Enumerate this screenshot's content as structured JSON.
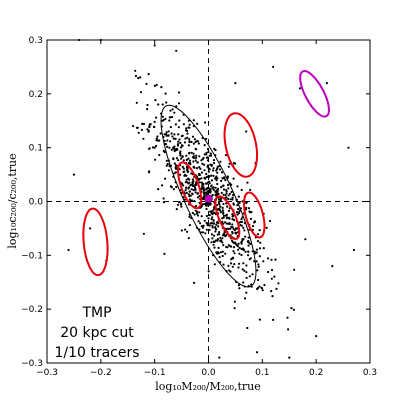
{
  "chart_data": {
    "type": "scatter",
    "xlabel": "log₁₀M₂₀₀/M₂₀₀,true",
    "ylabel": "log₁₀c₂₀₀/c₂₀₀,true",
    "xlim": [
      -0.3,
      0.3
    ],
    "ylim": [
      -0.3,
      0.3
    ],
    "xticks": [
      "−0.3",
      "−0.2",
      "−0.1",
      "0.0",
      "0.1",
      "0.2",
      "0.3"
    ],
    "yticks": [
      "−0.3",
      "−0.2",
      "−0.1",
      "0.0",
      "0.1",
      "0.2",
      "0.3"
    ],
    "reference_lines": {
      "x": 0.0,
      "y": 0.0,
      "style": "dashed"
    },
    "annotation": [
      "TMP",
      "20 kpc cut",
      "1/10 tracers"
    ],
    "points": {
      "color": "#000000",
      "center": [
        0.0,
        0.01
      ],
      "cov": [
        [
          0.0028,
          -0.0036
        ],
        [
          -0.0036,
          0.0072
        ]
      ],
      "count": 900,
      "outliers": [
        [
          -0.24,
          0.3
        ],
        [
          -0.2,
          0.3
        ],
        [
          -0.1,
          0.29
        ],
        [
          -0.06,
          0.28
        ],
        [
          0.17,
          0.21
        ],
        [
          0.22,
          0.22
        ],
        [
          0.26,
          0.1
        ],
        [
          0.27,
          -0.09
        ],
        [
          -0.26,
          -0.09
        ],
        [
          -0.22,
          -0.05
        ],
        [
          -0.19,
          -0.11
        ],
        [
          0.2,
          -0.25
        ],
        [
          0.23,
          -0.12
        ],
        [
          0.12,
          -0.22
        ],
        [
          -0.25,
          0.05
        ],
        [
          0.07,
          0.13
        ],
        [
          -0.14,
          0.14
        ],
        [
          0.18,
          -0.07
        ],
        [
          0.12,
          0.25
        ],
        [
          0.02,
          -0.29
        ],
        [
          0.09,
          -0.28
        ],
        [
          0.15,
          -0.29
        ],
        [
          -0.12,
          -0.06
        ],
        [
          0.05,
          0.22
        ]
      ]
    },
    "ellipses": [
      {
        "name": "black-ellipse",
        "color": "#000000",
        "cx": 0.0,
        "cy": 0.01,
        "rx": 0.045,
        "ry": 0.185,
        "tilt_deg": 25
      },
      {
        "name": "red-upper-right",
        "color": "#e8000b",
        "cx": 0.06,
        "cy": 0.105,
        "rx": 0.028,
        "ry": 0.06,
        "tilt_deg": 12
      },
      {
        "name": "red-center-left",
        "color": "#e8000b",
        "cx": -0.035,
        "cy": 0.03,
        "rx": 0.016,
        "ry": 0.045,
        "tilt_deg": 20
      },
      {
        "name": "red-center-right",
        "color": "#e8000b",
        "cx": 0.035,
        "cy": -0.03,
        "rx": 0.015,
        "ry": 0.043,
        "tilt_deg": 24
      },
      {
        "name": "red-right",
        "color": "#e8000b",
        "cx": 0.085,
        "cy": -0.025,
        "rx": 0.016,
        "ry": 0.043,
        "tilt_deg": 15
      },
      {
        "name": "red-left",
        "color": "#e8000b",
        "cx": -0.21,
        "cy": -0.075,
        "rx": 0.022,
        "ry": 0.062,
        "tilt_deg": 5
      },
      {
        "name": "magenta-upper-right",
        "color": "#bf00bf",
        "cx": 0.197,
        "cy": 0.2,
        "rx": 0.017,
        "ry": 0.047,
        "tilt_deg": 28
      }
    ],
    "markers": [
      {
        "name": "true-value-marker",
        "color": "#bf00bf",
        "x": 0.0,
        "y": 0.005
      }
    ]
  }
}
